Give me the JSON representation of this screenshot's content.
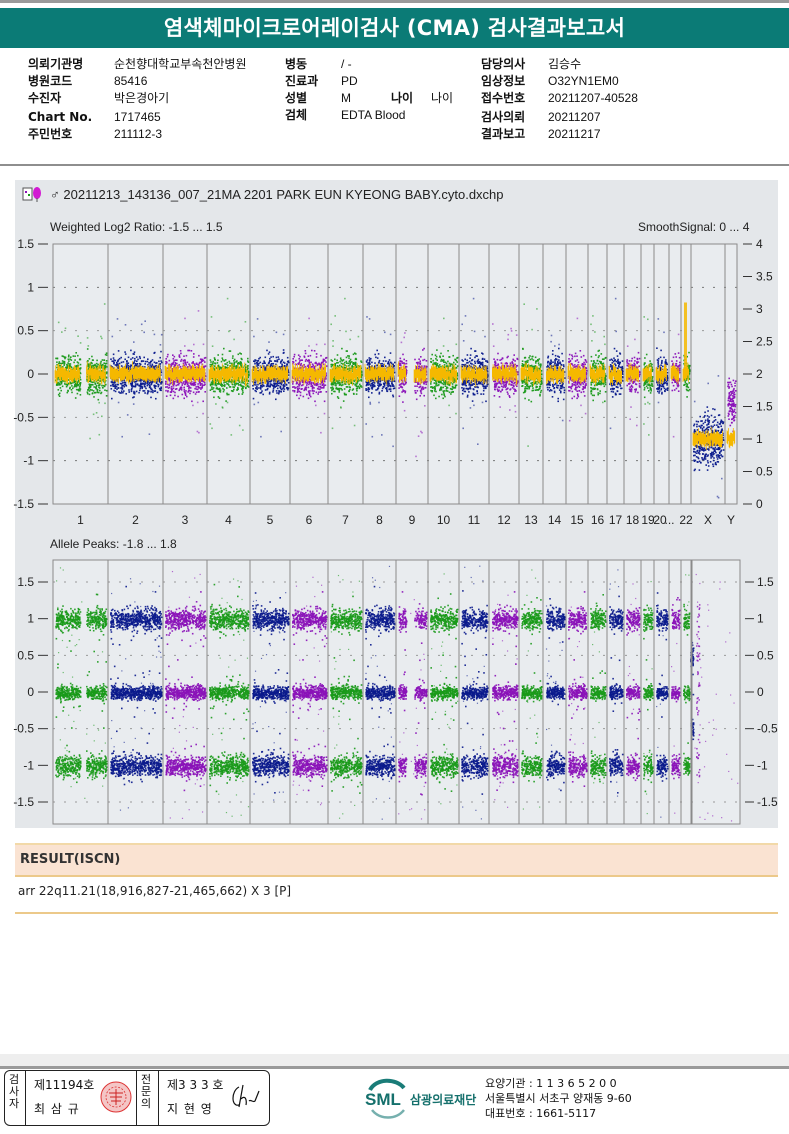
{
  "header": {
    "title": "염색체마이크로어레이검사 (CMA) 검사결과보고서"
  },
  "patient_info": {
    "col1": [
      {
        "label": "의뢰기관명",
        "value": "순천향대학교부속천안병원"
      },
      {
        "label": "병원코드",
        "value": "85416"
      },
      {
        "label": "수진자",
        "value": "박은경아기"
      },
      {
        "label": "Chart No.",
        "value": "1717465"
      },
      {
        "label": "주민번호",
        "value": "211112-3"
      }
    ],
    "col2": [
      {
        "label": "병동",
        "value": "/ -"
      },
      {
        "label": "진료과",
        "value": "PD"
      },
      {
        "label": "성별",
        "value": "M"
      },
      {
        "label": "검체",
        "value": "EDTA Blood"
      }
    ],
    "age": {
      "label": "나이",
      "value": "나이"
    },
    "col3": [
      {
        "label": "담당의사",
        "value": "김승수"
      },
      {
        "label": "임상정보",
        "value": "O32YN1EM0"
      },
      {
        "label": "접수번호",
        "value": "20211207-40528"
      },
      {
        "label": "검사의뢰",
        "value": "20211207"
      },
      {
        "label": "결과보고",
        "value": "20211217"
      }
    ]
  },
  "chart_panel": {
    "file_name": "20211213_143136_007_21MA 2201 PARK EUN KYEONG BABY.cyto.dxchp",
    "sex_symbol": "♂"
  },
  "chart_data": [
    {
      "type": "scatter",
      "title": "Weighted Log2 Ratio: -1.5 ... 1.5",
      "right_title": "SmoothSignal: 0 ... 4",
      "ylim": [
        -1.5,
        1.5
      ],
      "y_ticks": [
        "1.5",
        "1",
        "0.5",
        "0",
        "-0.5",
        "-1",
        "-1.5"
      ],
      "y2lim": [
        0,
        4
      ],
      "y2_ticks": [
        "4",
        "3.5",
        "3",
        "2.5",
        "2",
        "1.5",
        "1",
        "0.5",
        "0"
      ],
      "x_labels": [
        "1",
        "2",
        "3",
        "4",
        "5",
        "6",
        "7",
        "8",
        "9",
        "10",
        "11",
        "12",
        "13",
        "14",
        "15",
        "16",
        "17",
        "18",
        "19",
        "20",
        "...",
        "22",
        "X",
        "Y"
      ],
      "series": [
        {
          "name": "Weighted Log2 Ratio",
          "color_cycle": [
            "#1a9a1a",
            "#0a1a8c",
            "#8a12b8"
          ]
        },
        {
          "name": "SmoothSignal",
          "color": "#f5b800"
        }
      ],
      "chromosomes": [
        {
          "chr": "1",
          "log2_spread": 0.35,
          "smooth": 2.0
        },
        {
          "chr": "2",
          "log2_spread": 0.35,
          "smooth": 2.0
        },
        {
          "chr": "3",
          "log2_spread": 0.35,
          "smooth": 2.0
        },
        {
          "chr": "4",
          "log2_spread": 0.35,
          "smooth": 2.0
        },
        {
          "chr": "5",
          "log2_spread": 0.35,
          "smooth": 2.0
        },
        {
          "chr": "6",
          "log2_spread": 0.35,
          "smooth": 2.0
        },
        {
          "chr": "7",
          "log2_spread": 0.35,
          "smooth": 2.0
        },
        {
          "chr": "8",
          "log2_spread": 0.35,
          "smooth": 2.0
        },
        {
          "chr": "9",
          "log2_spread": 0.35,
          "smooth": 2.0
        },
        {
          "chr": "10",
          "log2_spread": 0.35,
          "smooth": 2.0
        },
        {
          "chr": "11",
          "log2_spread": 0.35,
          "smooth": 2.0
        },
        {
          "chr": "12",
          "log2_spread": 0.35,
          "smooth": 2.0
        },
        {
          "chr": "13",
          "log2_spread": 0.35,
          "smooth": 2.0
        },
        {
          "chr": "14",
          "log2_spread": 0.35,
          "smooth": 2.0
        },
        {
          "chr": "15",
          "log2_spread": 0.35,
          "smooth": 2.0
        },
        {
          "chr": "16",
          "log2_spread": 0.35,
          "smooth": 2.0
        },
        {
          "chr": "17",
          "log2_spread": 0.35,
          "smooth": 2.0
        },
        {
          "chr": "18",
          "log2_spread": 0.35,
          "smooth": 2.0
        },
        {
          "chr": "19",
          "log2_spread": 0.35,
          "smooth": 2.0
        },
        {
          "chr": "20",
          "log2_spread": 0.35,
          "smooth": 2.0
        },
        {
          "chr": "21",
          "log2_spread": 0.35,
          "smooth": 2.0
        },
        {
          "chr": "22",
          "log2_spread": 0.35,
          "smooth": 2.0,
          "peak_smooth": 3.1
        },
        {
          "chr": "X",
          "log2_center": -0.75,
          "log2_spread": 0.45,
          "smooth": 1.0
        },
        {
          "chr": "Y",
          "log2_center": -0.3,
          "log2_spread": 0.4,
          "smooth": 1.0
        }
      ],
      "grid": true
    },
    {
      "type": "scatter",
      "title": "Allele Peaks: -1.8 ... 1.8",
      "ylim": [
        -1.8,
        1.8
      ],
      "y_ticks": [
        "1.5",
        "1",
        "0.5",
        "0",
        "-0.5",
        "-1",
        "-1.5"
      ],
      "y2_ticks": [
        "1.5",
        "1",
        "0.5",
        "0",
        "-0.5",
        "-1",
        "-1.5"
      ],
      "peak_bands": [
        1.0,
        0.0,
        -1.0
      ],
      "x_peak_bands": [
        0.5,
        -0.5
      ],
      "grid": true
    }
  ],
  "result": {
    "header": "RESULT(ISCN)",
    "text": "arr 22q11.21(18,916,827-21,465,662) X 3 [P]"
  },
  "footer": {
    "examiner_label": "검사자",
    "examiner_no": "제11194호",
    "examiner_name": "최 삼 규",
    "specialist_label": "전문의",
    "specialist_no": "제3 3 3 호",
    "specialist_name": "지 현 영",
    "org_logo": "SML",
    "org_name": "삼광의료재단",
    "org_lines": [
      "요양기관 : 1 1 3 6 5 2 0 0",
      "서울특별시 서초구 양재동 9-60",
      "대표번호 : 1661-5117"
    ]
  }
}
